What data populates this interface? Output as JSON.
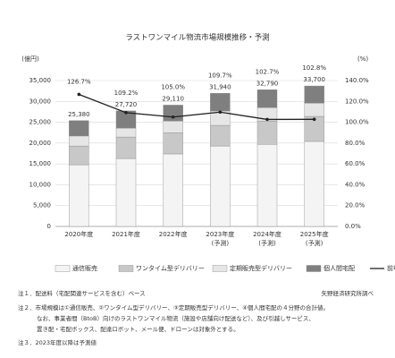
{
  "chart_data": {
    "type": "bar",
    "title": "ラストワンマイル物流市場規模推移・予測",
    "y_label": "(億円)",
    "y2_label": "(%)",
    "categories": [
      "2020年度",
      "2021年度",
      "2022年度",
      "2023年度",
      "2024年度",
      "2025年度"
    ],
    "category_notes": [
      null,
      null,
      null,
      "(予測)",
      "(予測)",
      "(予測)"
    ],
    "series": [
      {
        "name": "通信販売",
        "color": "#f4f4f4",
        "values": [
          14800,
          16300,
          17400,
          19300,
          19700,
          20400
        ]
      },
      {
        "name": "ワンタイム型デリバリー",
        "color": "#c8c8c8",
        "values": [
          4500,
          5150,
          5100,
          4950,
          5600,
          6000
        ]
      },
      {
        "name": "定期販売型デリバリー",
        "color": "#e6e6e6",
        "values": [
          2400,
          2150,
          2800,
          3450,
          3200,
          3200
        ]
      },
      {
        "name": "個人間宅配",
        "color": "#7f7f7f",
        "values": [
          3680,
          4120,
          3810,
          4240,
          4290,
          4100
        ]
      },
      {
        "name": "前年度比",
        "color": "#222222",
        "type": "line",
        "axis": "y2",
        "values": [
          126.7,
          109.2,
          105.0,
          109.7,
          102.7,
          102.8
        ],
        "value_labels": [
          "126.7%",
          "109.2%",
          "105.0%",
          "109.7%",
          "102.7%",
          "102.8%"
        ]
      }
    ],
    "totals": [
      25380,
      27720,
      29110,
      31940,
      32790,
      33700
    ],
    "total_labels": [
      "25,380",
      "27,720",
      "29,110",
      "31,940",
      "32,790",
      "33,700"
    ],
    "ylim": [
      0,
      35000
    ],
    "yticks": [
      {
        "value": 0,
        "label": "0"
      },
      {
        "value": 5000,
        "label": "5,000"
      },
      {
        "value": 10000,
        "label": "10,000"
      },
      {
        "value": 15000,
        "label": "15,000"
      },
      {
        "value": 20000,
        "label": "20,000"
      },
      {
        "value": 25000,
        "label": "25,000"
      },
      {
        "value": 30000,
        "label": "30,000"
      },
      {
        "value": 35000,
        "label": "35,000"
      }
    ],
    "y2lim": [
      0,
      140
    ],
    "y2ticks": [
      {
        "value": 0,
        "label": "0.0%"
      },
      {
        "value": 20,
        "label": "20.0%"
      },
      {
        "value": 40,
        "label": "40.0%"
      },
      {
        "value": 60,
        "label": "60.0%"
      },
      {
        "value": 80,
        "label": "80.0%"
      },
      {
        "value": 100,
        "label": "100.0%"
      },
      {
        "value": 120,
        "label": "120.0%"
      },
      {
        "value": 140,
        "label": "140.0%"
      }
    ],
    "grid": true,
    "legend": "bottom"
  },
  "notes": {
    "note1": "注１．配送料（宅配関連サービスを含む）ベース",
    "source": "矢野経済研究所調べ",
    "note2": [
      "注２．市場規模は①通信販売、②ワンタイム型デリバリー、③定期販売型デリバリー、④個人間宅配の４分野の合計値。",
      "なお、事業者間（BtoB）向けのラストワンマイル物流（施設や店舗向け配送など）、及び引越しサービス、",
      "置き配・宅配ボックス、配達ロボット、メール便、ドローンは対象外とする。"
    ],
    "note3": "注３．2023年度以降は予測値"
  }
}
